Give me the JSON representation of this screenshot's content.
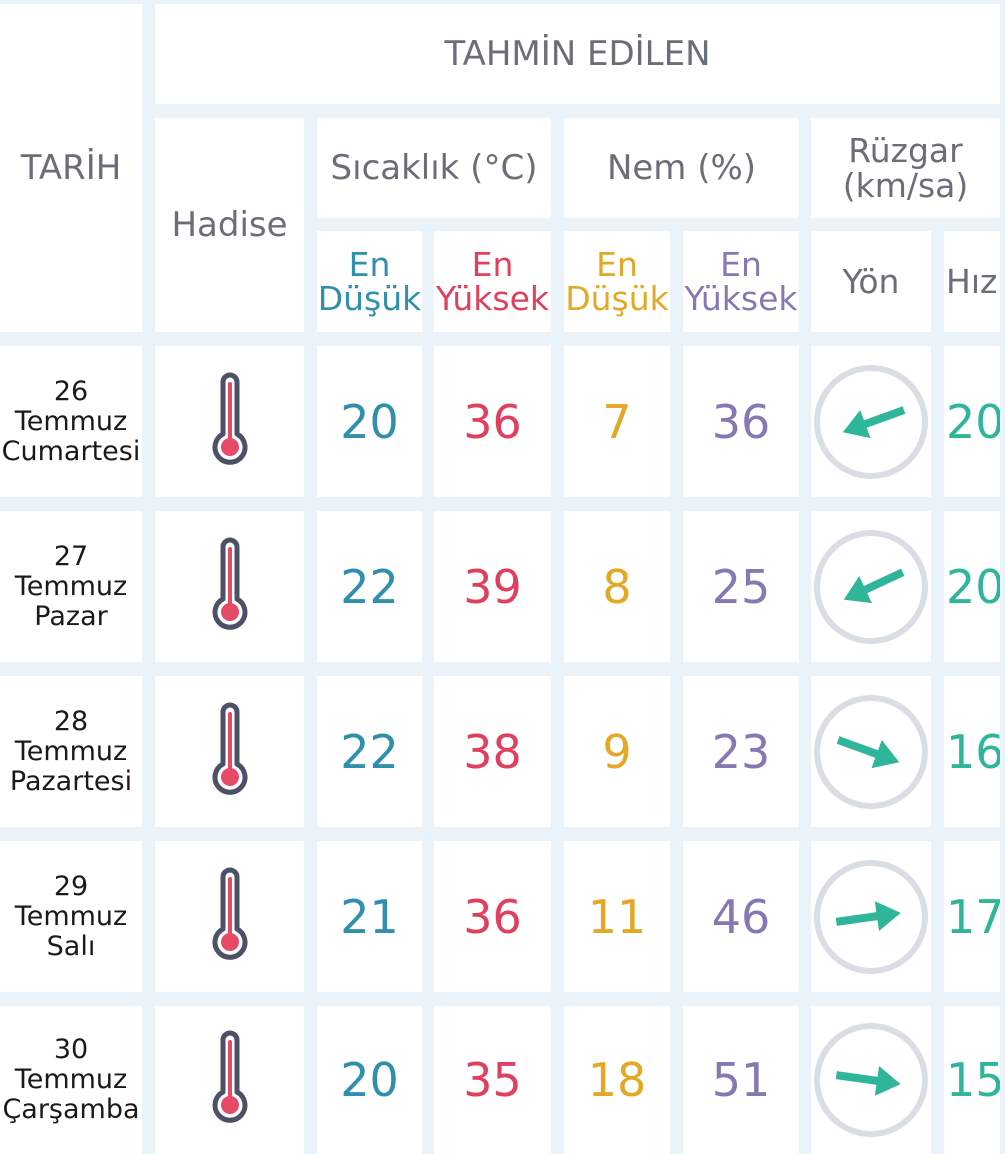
{
  "header": {
    "tarih": "TARİH",
    "tahmin": "TAHMİN EDİLEN",
    "hadise": "Hadise",
    "sicaklik": "Sıcaklık (°C)",
    "nem": "Nem (%)",
    "ruzgar_line1": "Rüzgar",
    "ruzgar_line2": "(km/sa)",
    "en": "En",
    "dusuk": "Düşük",
    "yuksek": "Yüksek",
    "yon": "Yön",
    "hiz": "Hız"
  },
  "colors": {
    "min_temp": "#2f8fad",
    "max_temp": "#e0405e",
    "min_hum": "#e4a826",
    "max_hum": "#8678b4",
    "wind": "#2fb59a"
  },
  "rows": [
    {
      "day": "26",
      "month": "Temmuz",
      "weekday": "Cumartesi",
      "icon": "thermometer-icon",
      "min_temp": "20",
      "max_temp": "36",
      "min_hum": "7",
      "max_hum": "36",
      "wind_dir": "wind-direction-arrow-icon",
      "wind_speed": "20"
    },
    {
      "day": "27",
      "month": "Temmuz",
      "weekday": "Pazar",
      "icon": "thermometer-icon",
      "min_temp": "22",
      "max_temp": "39",
      "min_hum": "8",
      "max_hum": "25",
      "wind_dir": "wind-direction-arrow-icon",
      "wind_speed": "20"
    },
    {
      "day": "28",
      "month": "Temmuz",
      "weekday": "Pazartesi",
      "icon": "thermometer-icon",
      "min_temp": "22",
      "max_temp": "38",
      "min_hum": "9",
      "max_hum": "23",
      "wind_dir": "wind-direction-arrow-icon",
      "wind_speed": "16"
    },
    {
      "day": "29",
      "month": "Temmuz",
      "weekday": "Salı",
      "icon": "thermometer-icon",
      "min_temp": "21",
      "max_temp": "36",
      "min_hum": "11",
      "max_hum": "46",
      "wind_dir": "wind-direction-arrow-icon",
      "wind_speed": "17"
    },
    {
      "day": "30",
      "month": "Temmuz",
      "weekday": "Çarşamba",
      "icon": "thermometer-icon",
      "min_temp": "20",
      "max_temp": "35",
      "min_hum": "18",
      "max_hum": "51",
      "wind_dir": "wind-direction-arrow-icon",
      "wind_speed": "15"
    }
  ]
}
